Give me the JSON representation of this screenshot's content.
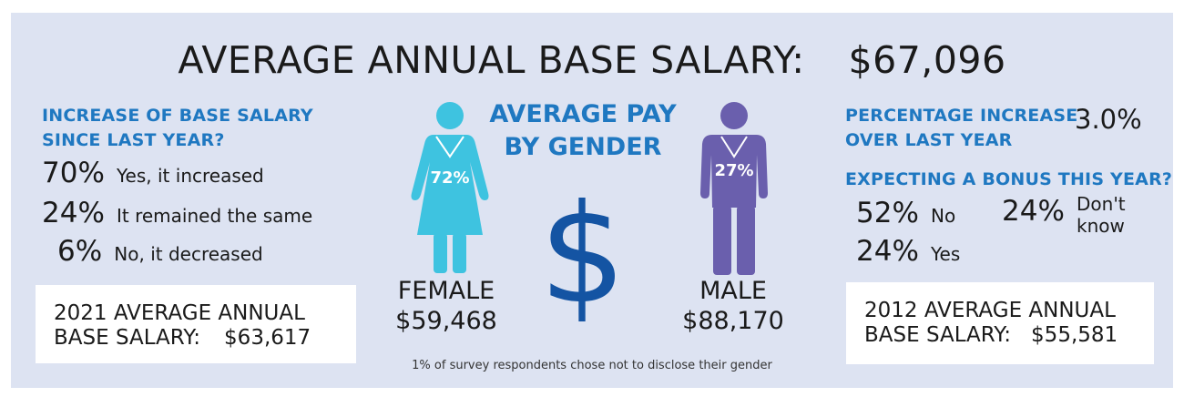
{
  "title": {
    "label": "AVERAGE ANNUAL BASE SALARY:",
    "value": "$67,096"
  },
  "left": {
    "heading_line1": "INCREASE OF BASE SALARY",
    "heading_line2": "SINCE LAST YEAR?",
    "rows": [
      {
        "pct": "70%",
        "label": "Yes, it increased"
      },
      {
        "pct": "24%",
        "label": "It remained the same"
      },
      {
        "pct": "6%",
        "label": "No, it decreased"
      }
    ],
    "box_line1": "2021 AVERAGE ANNUAL",
    "box_label": "BASE SALARY:",
    "box_value": "$63,617"
  },
  "center": {
    "heading_line1": "AVERAGE PAY",
    "heading_line2": "BY GENDER",
    "dollar_sign": "$",
    "female": {
      "pct": "72%",
      "label": "FEMALE",
      "salary": "$59,468",
      "color": "#3ec3e0"
    },
    "male": {
      "pct": "27%",
      "label": "MALE",
      "salary": "$88,170",
      "color": "#6a5fad"
    },
    "dollar_color": "#1454a3",
    "footnote": "1% of survey respondents chose not to disclose their gender"
  },
  "right": {
    "increase_heading_line1": "PERCENTAGE INCREASE",
    "increase_heading_line2": "OVER LAST YEAR",
    "increase_value": "3.0%",
    "bonus_heading": "EXPECTING A BONUS THIS YEAR?",
    "bonus": [
      {
        "pct": "52%",
        "label": "No"
      },
      {
        "pct": "24%",
        "label_line1": "Don't",
        "label_line2": "know"
      },
      {
        "pct": "24%",
        "label": "Yes"
      }
    ],
    "box_line1": "2012 AVERAGE ANNUAL",
    "box_label": "BASE SALARY:",
    "box_value": "$55,581"
  },
  "colors": {
    "panel": "#dde3f2",
    "heading_blue": "#1f78c1"
  }
}
